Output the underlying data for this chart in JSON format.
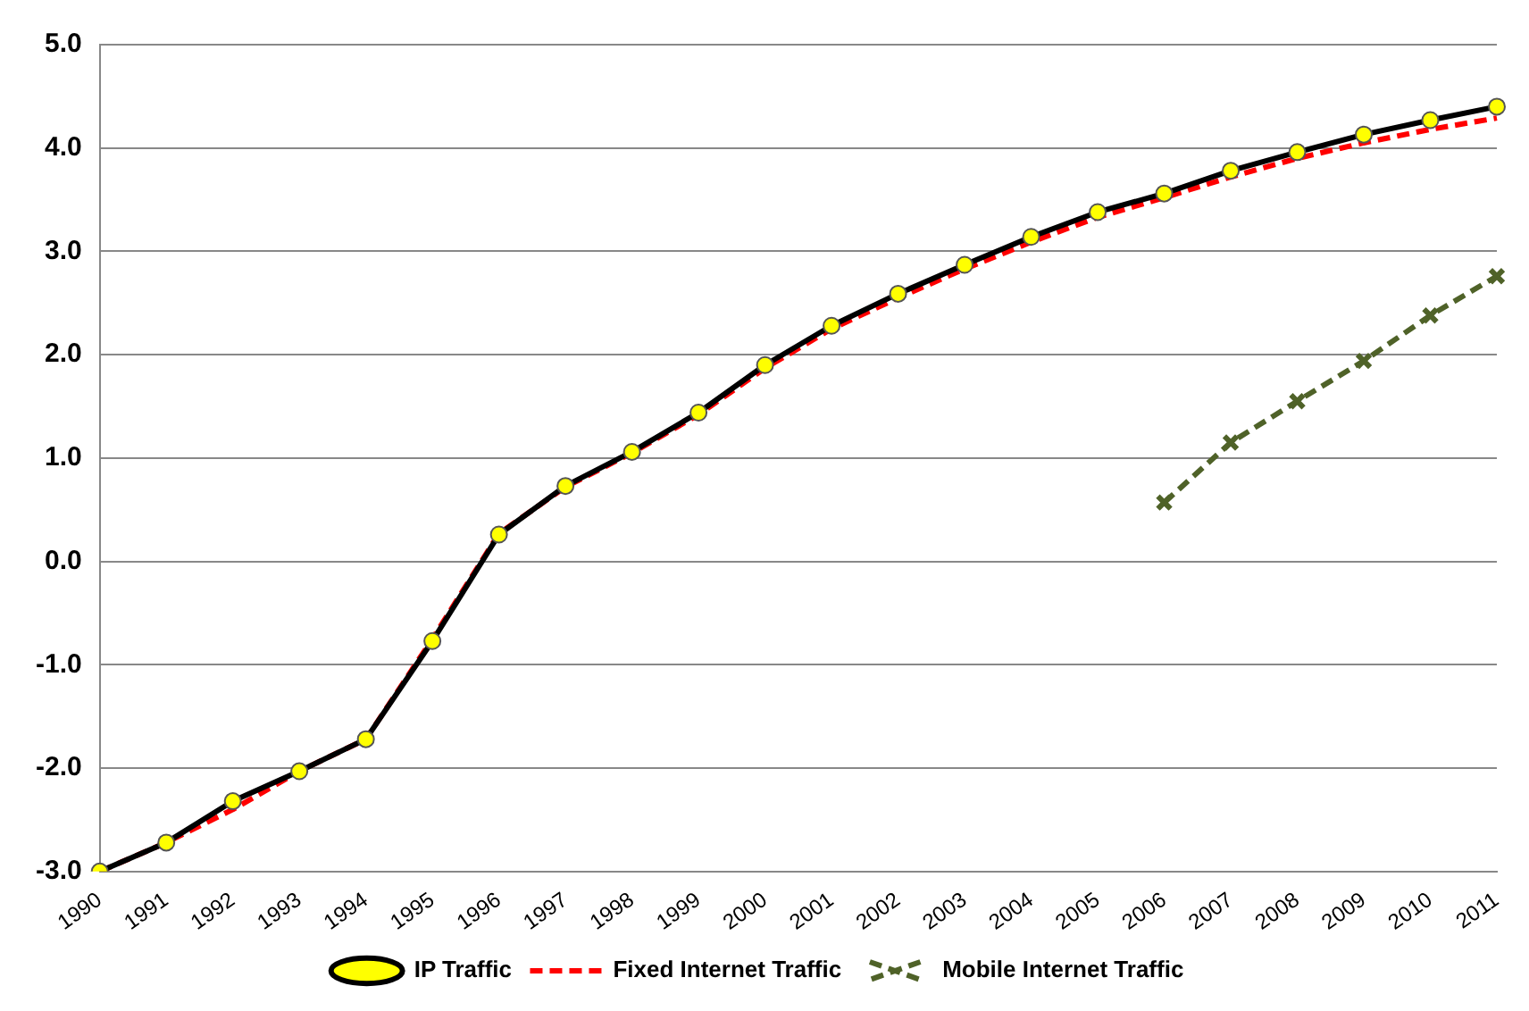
{
  "chart_data": {
    "type": "line",
    "categories": [
      "1990",
      "1991",
      "1992",
      "1993",
      "1994",
      "1995",
      "1996",
      "1997",
      "1998",
      "1999",
      "2000",
      "2001",
      "2002",
      "2003",
      "2004",
      "2005",
      "2006",
      "2007",
      "2008",
      "2009",
      "2010",
      "2011"
    ],
    "series": [
      {
        "name": "IP Traffic",
        "color": "#000000",
        "marker": "circle",
        "line_style": "solid",
        "values": [
          -3.0,
          -2.72,
          -2.32,
          -2.03,
          -1.72,
          -0.77,
          0.26,
          0.73,
          1.06,
          1.44,
          1.9,
          2.28,
          2.59,
          2.87,
          3.14,
          3.38,
          3.56,
          3.78,
          3.96,
          4.13,
          4.27,
          4.4
        ]
      },
      {
        "name": "Fixed Internet Traffic",
        "color": "#ff0000",
        "marker": "none",
        "line_style": "dashed",
        "values": [
          -3.0,
          -2.72,
          -2.4,
          -2.03,
          -1.72,
          -0.75,
          0.27,
          0.72,
          1.05,
          1.42,
          1.87,
          2.25,
          2.55,
          2.83,
          3.09,
          3.33,
          3.52,
          3.72,
          3.9,
          4.05,
          4.18,
          4.29
        ]
      },
      {
        "name": "Mobile Internet Traffic",
        "color": "#4f6228",
        "marker": "cross",
        "line_style": "dashed",
        "values": [
          null,
          null,
          null,
          null,
          null,
          null,
          null,
          null,
          null,
          null,
          null,
          null,
          null,
          null,
          null,
          null,
          0.57,
          1.15,
          1.55,
          1.94,
          2.38,
          2.76
        ]
      }
    ],
    "ylim": [
      -3,
      5
    ],
    "yticks": [
      {
        "value": -3,
        "label": "-3.0"
      },
      {
        "value": -2,
        "label": "-2.0"
      },
      {
        "value": -1,
        "label": "-1.0"
      },
      {
        "value": 0,
        "label": "0.0"
      },
      {
        "value": 1,
        "label": "1.0"
      },
      {
        "value": 2,
        "label": "2.0"
      },
      {
        "value": 3,
        "label": "3.0"
      },
      {
        "value": 4,
        "label": "4.0"
      },
      {
        "value": 5,
        "label": "5.0"
      }
    ],
    "grid": "y",
    "legend": "bottom"
  }
}
